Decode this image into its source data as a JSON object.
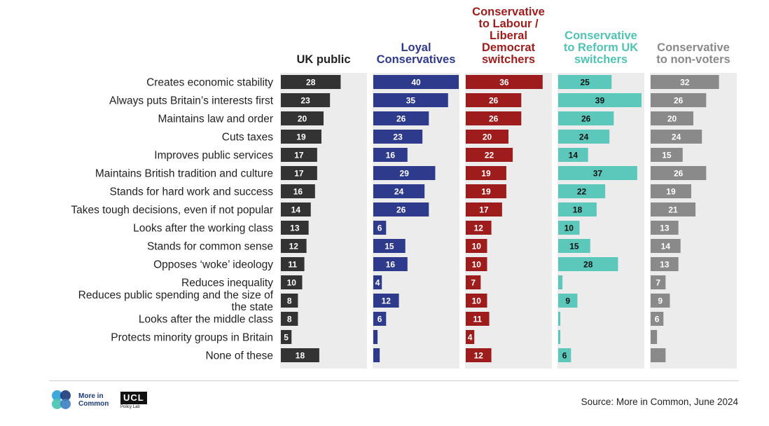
{
  "chart_data": {
    "type": "bar",
    "orientation": "horizontal",
    "categories": [
      "Creates economic stability",
      "Always puts Britain’s interests first",
      "Maintains law and order",
      "Cuts taxes",
      "Improves public services",
      "Maintains British tradition and culture",
      "Stands for hard work and success",
      "Takes tough decisions, even if not popular",
      "Looks after the working class",
      "Stands for common sense",
      "Opposes ‘woke’ ideology",
      "Reduces inequality",
      "Reduces public spending and the size of the state",
      "Looks after the middle class",
      "Protects minority groups in Britain",
      "None of these"
    ],
    "series": [
      {
        "name": "UK public",
        "color": "#333333",
        "label_color": "#ffffff",
        "values": [
          28,
          23,
          20,
          19,
          17,
          17,
          16,
          14,
          13,
          12,
          11,
          10,
          8,
          8,
          5,
          18
        ],
        "labels": [
          "28",
          "23",
          "20",
          "19",
          "17",
          "17",
          "16",
          "14",
          "13",
          "12",
          "11",
          "10",
          "8",
          "8",
          "5",
          "18"
        ]
      },
      {
        "name": "Loyal Conservatives",
        "color": "#2e3a8c",
        "label_color": "#ffffff",
        "values": [
          40,
          35,
          26,
          23,
          16,
          29,
          24,
          26,
          6,
          15,
          16,
          4,
          12,
          6,
          2,
          3
        ],
        "labels": [
          "40",
          "35",
          "26",
          "23",
          "16",
          "29",
          "24",
          "26",
          "6",
          "15",
          "16",
          "4",
          "12",
          "6",
          "",
          ""
        ]
      },
      {
        "name": "Conservative to Labour / Liberal Democrat switchers",
        "color": "#9e1c1c",
        "label_color": "#ffffff",
        "values": [
          36,
          26,
          26,
          20,
          22,
          19,
          19,
          17,
          12,
          10,
          10,
          7,
          10,
          11,
          4,
          12
        ],
        "labels": [
          "36",
          "26",
          "26",
          "20",
          "22",
          "19",
          "19",
          "17",
          "12",
          "10",
          "10",
          "7",
          "10",
          "11",
          "4",
          "12"
        ]
      },
      {
        "name": "Conservative to Reform UK switchers",
        "color": "#5cc8bb",
        "label_color": "#111111",
        "values": [
          25,
          39,
          26,
          24,
          14,
          37,
          22,
          18,
          10,
          15,
          28,
          2,
          9,
          1,
          1,
          6
        ],
        "labels": [
          "25",
          "39",
          "26",
          "24",
          "14",
          "37",
          "22",
          "18",
          "10",
          "15",
          "28",
          "",
          "9",
          "",
          "",
          "6"
        ]
      },
      {
        "name": "Conservative to non-voters",
        "color": "#8a8a8a",
        "label_color": "#ffffff",
        "values": [
          32,
          26,
          20,
          24,
          15,
          26,
          19,
          21,
          13,
          14,
          13,
          7,
          9,
          6,
          3,
          7
        ],
        "labels": [
          "32",
          "26",
          "20",
          "24",
          "15",
          "26",
          "19",
          "21",
          "13",
          "14",
          "13",
          "7",
          "9",
          "6",
          "",
          ""
        ]
      }
    ],
    "headers": [
      {
        "lines": [
          "UK public"
        ],
        "color": "#222222"
      },
      {
        "lines": [
          "Loyal",
          "Conservatives"
        ],
        "color": "#2e3a8c"
      },
      {
        "lines": [
          "Conservative",
          "to Labour /",
          "Liberal",
          "Democrat",
          "switchers"
        ],
        "color": "#9e1c1c"
      },
      {
        "lines": [
          "Conservative",
          "to Reform UK",
          "switchers"
        ],
        "color": "#4fc3b6"
      },
      {
        "lines": [
          "Conservative",
          "to non-voters"
        ],
        "color": "#8a8a8a"
      }
    ],
    "xlim": [
      0,
      40
    ],
    "grid": false,
    "legend": "none",
    "column_background": "#ececec"
  },
  "footer": {
    "logo_mic": "More in Common",
    "logo_ucl": "UCL",
    "logo_ucl_sub": "Policy Lab",
    "source": "Source: More in Common, June 2024"
  }
}
